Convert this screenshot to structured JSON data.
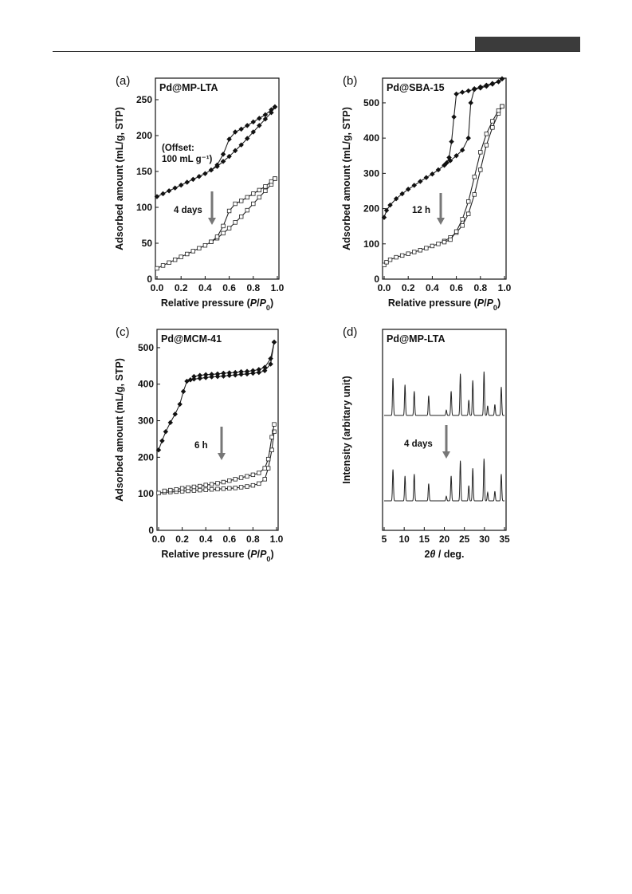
{
  "chart_data": [
    {
      "id": "a",
      "type": "line",
      "panel_label": "(a)",
      "title": "Pd@MP-LTA",
      "xlabel_parts": [
        "Relative pressure (",
        "P",
        "/",
        "P",
        "0",
        ")"
      ],
      "ylabel": "Adsorbed amount (mL/g, STP)",
      "xlim": [
        0,
        1.0
      ],
      "ylim": [
        0,
        280
      ],
      "xticks": [
        "0.0",
        "0.2",
        "0.4",
        "0.6",
        "0.8",
        "1.0"
      ],
      "yticks": [
        0,
        50,
        100,
        150,
        200,
        250
      ],
      "annotations": [
        "(Offset:",
        "100 mL g⁻¹)",
        "4 days"
      ],
      "series": [
        {
          "marker": "filled-diamond",
          "branch": "adsorption",
          "x": [
            0.0,
            0.05,
            0.1,
            0.15,
            0.2,
            0.25,
            0.3,
            0.35,
            0.4,
            0.45,
            0.5,
            0.55,
            0.6,
            0.65,
            0.7,
            0.75,
            0.8,
            0.85,
            0.9,
            0.95,
            0.98
          ],
          "y": [
            115,
            119,
            123,
            127,
            131,
            135,
            139,
            143,
            147,
            152,
            157,
            164,
            171,
            179,
            187,
            196,
            205,
            214,
            223,
            232,
            240
          ]
        },
        {
          "marker": "filled-diamond",
          "branch": "desorption",
          "x": [
            0.98,
            0.95,
            0.9,
            0.85,
            0.8,
            0.75,
            0.7,
            0.65,
            0.6,
            0.55,
            0.5,
            0.45
          ],
          "y": [
            240,
            236,
            229,
            224,
            219,
            214,
            209,
            205,
            195,
            174,
            159,
            152
          ]
        },
        {
          "marker": "open-square",
          "branch": "adsorption",
          "x": [
            0.0,
            0.05,
            0.1,
            0.15,
            0.2,
            0.25,
            0.3,
            0.35,
            0.4,
            0.45,
            0.5,
            0.55,
            0.6,
            0.65,
            0.7,
            0.75,
            0.8,
            0.85,
            0.9,
            0.95,
            0.98
          ],
          "y": [
            15,
            19,
            23,
            27,
            31,
            35,
            39,
            43,
            47,
            52,
            57,
            64,
            71,
            79,
            87,
            96,
            105,
            114,
            123,
            132,
            140
          ]
        },
        {
          "marker": "open-square",
          "branch": "desorption",
          "x": [
            0.98,
            0.95,
            0.9,
            0.85,
            0.8,
            0.75,
            0.7,
            0.65,
            0.6,
            0.55,
            0.5,
            0.45
          ],
          "y": [
            140,
            136,
            129,
            124,
            119,
            114,
            109,
            105,
            95,
            74,
            59,
            52
          ]
        }
      ]
    },
    {
      "id": "b",
      "type": "line",
      "panel_label": "(b)",
      "title": "Pd@SBA-15",
      "xlabel_parts": [
        "Relative pressure (",
        "P",
        "/",
        "P",
        "0",
        ")"
      ],
      "ylabel": "Adsorbed amount (mL/g, STP)",
      "xlim": [
        0,
        1.0
      ],
      "ylim": [
        0,
        570
      ],
      "xticks": [
        "0.0",
        "0.2",
        "0.4",
        "0.6",
        "0.8",
        "1.0"
      ],
      "yticks": [
        0,
        100,
        200,
        300,
        400,
        500
      ],
      "annotations": [
        "12 h"
      ],
      "series": [
        {
          "marker": "filled-diamond",
          "branch": "adsorption",
          "x": [
            0.0,
            0.02,
            0.05,
            0.1,
            0.15,
            0.2,
            0.25,
            0.3,
            0.35,
            0.4,
            0.45,
            0.5,
            0.55,
            0.6,
            0.65,
            0.7,
            0.72,
            0.75,
            0.8,
            0.85,
            0.9,
            0.95,
            0.98
          ],
          "y": [
            175,
            195,
            210,
            228,
            242,
            255,
            266,
            277,
            288,
            298,
            310,
            323,
            336,
            350,
            366,
            400,
            500,
            540,
            545,
            550,
            555,
            560,
            568
          ]
        },
        {
          "marker": "filled-diamond",
          "branch": "desorption",
          "x": [
            0.98,
            0.95,
            0.9,
            0.85,
            0.8,
            0.75,
            0.7,
            0.65,
            0.6,
            0.58,
            0.56,
            0.54,
            0.52,
            0.5
          ],
          "y": [
            568,
            560,
            553,
            547,
            542,
            538,
            534,
            530,
            525,
            460,
            390,
            345,
            330,
            323
          ]
        },
        {
          "marker": "open-square",
          "branch": "adsorption",
          "x": [
            0.0,
            0.02,
            0.05,
            0.1,
            0.15,
            0.2,
            0.25,
            0.3,
            0.35,
            0.4,
            0.45,
            0.5,
            0.55,
            0.6,
            0.65,
            0.7,
            0.75,
            0.8,
            0.85,
            0.9,
            0.95,
            0.98
          ],
          "y": [
            40,
            48,
            55,
            62,
            67,
            72,
            77,
            82,
            88,
            94,
            100,
            108,
            118,
            132,
            152,
            185,
            240,
            310,
            380,
            430,
            470,
            490
          ]
        },
        {
          "marker": "open-square",
          "branch": "desorption",
          "x": [
            0.98,
            0.95,
            0.9,
            0.85,
            0.8,
            0.75,
            0.7,
            0.65,
            0.6,
            0.55,
            0.5
          ],
          "y": [
            490,
            478,
            448,
            412,
            360,
            290,
            220,
            170,
            135,
            112,
            105
          ]
        }
      ]
    },
    {
      "id": "c",
      "type": "line",
      "panel_label": "(c)",
      "title": "Pd@MCM-41",
      "xlabel_parts": [
        "Relative pressure (",
        "P",
        "/",
        "P",
        "0",
        ")"
      ],
      "ylabel": "Adsorbed amount (mL/g, STP)",
      "xlim": [
        0,
        1.0
      ],
      "ylim": [
        0,
        550
      ],
      "xticks": [
        "0.0",
        "0.2",
        "0.4",
        "0.6",
        "0.8",
        "1.0"
      ],
      "yticks": [
        0,
        100,
        200,
        300,
        400,
        500
      ],
      "annotations": [
        "6 h"
      ],
      "series": [
        {
          "marker": "filled-diamond",
          "branch": "adsorption",
          "x": [
            0.0,
            0.03,
            0.06,
            0.1,
            0.14,
            0.18,
            0.21,
            0.24,
            0.27,
            0.3,
            0.35,
            0.4,
            0.45,
            0.5,
            0.55,
            0.6,
            0.65,
            0.7,
            0.75,
            0.8,
            0.85,
            0.9,
            0.95,
            0.98
          ],
          "y": [
            220,
            245,
            270,
            295,
            318,
            345,
            380,
            408,
            412,
            414,
            416,
            418,
            420,
            421,
            422,
            424,
            425,
            427,
            428,
            430,
            432,
            437,
            455,
            515
          ]
        },
        {
          "marker": "filled-diamond",
          "branch": "desorption",
          "x": [
            0.98,
            0.95,
            0.9,
            0.85,
            0.8,
            0.75,
            0.7,
            0.65,
            0.6,
            0.55,
            0.5,
            0.45,
            0.4,
            0.35,
            0.3
          ],
          "y": [
            515,
            470,
            446,
            440,
            437,
            435,
            434,
            432,
            431,
            430,
            428,
            427,
            426,
            424,
            421
          ]
        },
        {
          "marker": "open-square",
          "branch": "adsorption",
          "x": [
            0.0,
            0.05,
            0.1,
            0.15,
            0.2,
            0.25,
            0.3,
            0.35,
            0.4,
            0.45,
            0.5,
            0.55,
            0.6,
            0.65,
            0.7,
            0.75,
            0.8,
            0.85,
            0.9,
            0.93,
            0.96,
            0.98
          ],
          "y": [
            102,
            104,
            105,
            106,
            107,
            108,
            109,
            110,
            111,
            112,
            113,
            114,
            115,
            116,
            118,
            120,
            123,
            128,
            140,
            170,
            220,
            270
          ]
        },
        {
          "marker": "open-square",
          "branch": "desorption",
          "x": [
            0.98,
            0.96,
            0.93,
            0.9,
            0.85,
            0.8,
            0.75,
            0.7,
            0.65,
            0.6,
            0.55,
            0.5,
            0.45,
            0.4,
            0.35,
            0.3,
            0.25,
            0.2,
            0.15,
            0.1,
            0.05
          ],
          "y": [
            290,
            255,
            195,
            170,
            157,
            152,
            148,
            144,
            140,
            136,
            132,
            129,
            126,
            124,
            121,
            119,
            117,
            115,
            112,
            110,
            108
          ]
        }
      ]
    },
    {
      "id": "d",
      "type": "line",
      "panel_label": "(d)",
      "title": "Pd@MP-LTA",
      "xlabel_parts": [
        "2",
        "θ",
        " / deg."
      ],
      "ylabel": "Intensity (arbitary unit)",
      "xlim": [
        5,
        35
      ],
      "xticks": [
        "5",
        "10",
        "15",
        "20",
        "25",
        "30",
        "35"
      ],
      "annotations": [
        "4 days"
      ],
      "peaks": {
        "positions": [
          7.2,
          10.2,
          12.5,
          16.1,
          20.5,
          21.7,
          24.0,
          26.1,
          27.1,
          29.9,
          30.8,
          32.6,
          34.2
        ],
        "top_intensities": [
          0.85,
          0.7,
          0.55,
          0.45,
          0.12,
          0.55,
          0.95,
          0.35,
          0.8,
          1.0,
          0.22,
          0.25,
          0.65
        ],
        "bottom_intensities": [
          0.82,
          0.65,
          0.7,
          0.45,
          0.12,
          0.65,
          1.05,
          0.4,
          0.85,
          1.1,
          0.22,
          0.25,
          0.7
        ]
      }
    }
  ]
}
